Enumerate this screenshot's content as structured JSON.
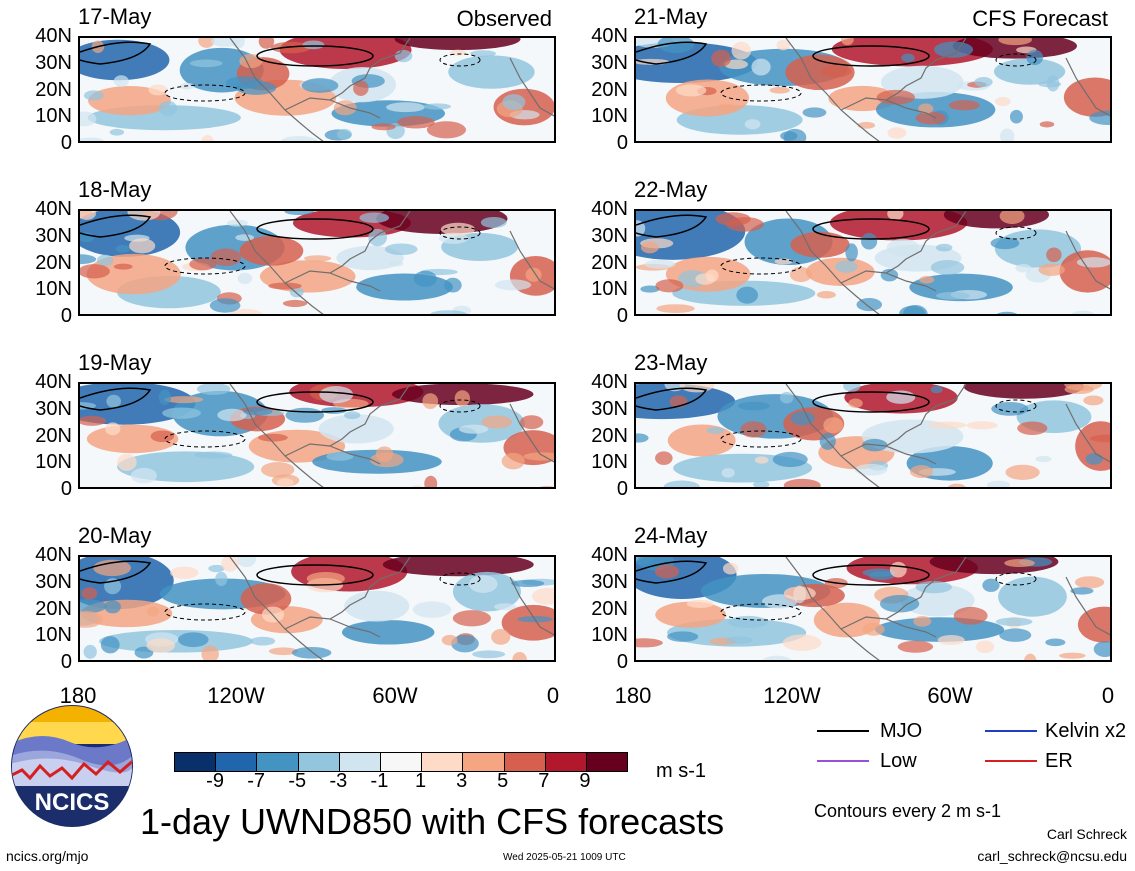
{
  "panels": [
    {
      "date": "17-May",
      "label": "Observed"
    },
    {
      "date": "18-May",
      "label": ""
    },
    {
      "date": "19-May",
      "label": ""
    },
    {
      "date": "20-May",
      "label": ""
    },
    {
      "date": "21-May",
      "label": "CFS Forecast"
    },
    {
      "date": "22-May",
      "label": ""
    },
    {
      "date": "23-May",
      "label": ""
    },
    {
      "date": "24-May",
      "label": ""
    }
  ],
  "y_ticks": [
    "40N",
    "30N",
    "20N",
    "10N",
    "0"
  ],
  "x_ticks": [
    "180",
    "120W",
    "60W",
    "0"
  ],
  "colorbar": {
    "colors": [
      "#08306b",
      "#2166ac",
      "#4393c3",
      "#92c5de",
      "#d1e5f0",
      "#f7f7f7",
      "#fddbc7",
      "#f4a582",
      "#d6604d",
      "#b2182b",
      "#67001f"
    ],
    "labels": [
      "-9",
      "-7",
      "-5",
      "-3",
      "-1",
      "1",
      "3",
      "5",
      "7",
      "9"
    ],
    "units": "m s-1"
  },
  "title": "1-day UWND850 with CFS forecasts",
  "legend": [
    {
      "name": "MJO",
      "color": "#000000"
    },
    {
      "name": "Kelvin x2",
      "color": "#1f3fbf"
    },
    {
      "name": "Low",
      "color": "#9b4fd6"
    },
    {
      "name": "ER",
      "color": "#d62020"
    }
  ],
  "contour_note": "Contours every 2 m s-1",
  "author": "Carl Schreck",
  "email": "carl_schreck@ncsu.edu",
  "website": "ncics.org/mjo",
  "timestamp": "Wed 2025-05-21 1009 UTC",
  "logo_text": "NCICS"
}
